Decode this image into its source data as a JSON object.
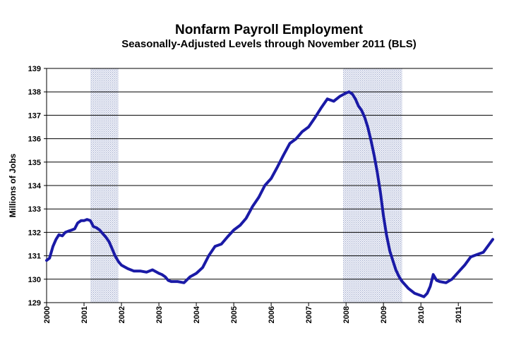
{
  "chart_data": {
    "type": "line",
    "title": "Nonfarm Payroll Employment",
    "subtitle": "Seasonally-Adjusted Levels through November 2011 (BLS)",
    "ylabel": "Millions of Jobs",
    "xlabel": "",
    "ylim": [
      129,
      139
    ],
    "yticks": [
      "129",
      "130",
      "131",
      "132",
      "133",
      "134",
      "135",
      "136",
      "137",
      "138",
      "139"
    ],
    "xlim": [
      2000.0,
      2011.92
    ],
    "xticks": [
      "2000",
      "2001",
      "2002",
      "2003",
      "2004",
      "2005",
      "2006",
      "2007",
      "2008",
      "2009",
      "2010",
      "2011"
    ],
    "grid": true,
    "line_color": "#1a1aa6",
    "recessions": [
      {
        "start": 2001.17,
        "end": 2001.92
      },
      {
        "start": 2007.92,
        "end": 2009.5
      }
    ],
    "series": [
      {
        "x": [
          2000.0,
          2000.08,
          2000.17,
          2000.25,
          2000.33,
          2000.42,
          2000.5,
          2000.58,
          2000.67,
          2000.75,
          2000.83,
          2000.92,
          2001.0,
          2001.08,
          2001.17,
          2001.25,
          2001.33,
          2001.42,
          2001.5,
          2001.58,
          2001.67,
          2001.75,
          2001.83,
          2001.92,
          2002.0,
          2002.17,
          2002.33,
          2002.5,
          2002.67,
          2002.83,
          2003.0,
          2003.08,
          2003.17,
          2003.25,
          2003.33,
          2003.5,
          2003.67,
          2003.83,
          2004.0,
          2004.17,
          2004.33,
          2004.5,
          2004.67,
          2004.83,
          2005.0,
          2005.17,
          2005.33,
          2005.5,
          2005.67,
          2005.83,
          2006.0,
          2006.17,
          2006.33,
          2006.5,
          2006.67,
          2006.83,
          2007.0,
          2007.17,
          2007.33,
          2007.5,
          2007.67,
          2007.83,
          2008.0,
          2008.08,
          2008.17,
          2008.25,
          2008.33,
          2008.42,
          2008.5,
          2008.58,
          2008.67,
          2008.75,
          2008.83,
          2008.92,
          2009.0,
          2009.08,
          2009.17,
          2009.25,
          2009.33,
          2009.42,
          2009.5,
          2009.67,
          2009.83,
          2010.0,
          2010.08,
          2010.17,
          2010.25,
          2010.33,
          2010.42,
          2010.5,
          2010.67,
          2010.83,
          2011.0,
          2011.17,
          2011.33,
          2011.5,
          2011.67,
          2011.83,
          2011.92
        ],
        "values": [
          130.8,
          130.9,
          131.4,
          131.7,
          131.9,
          131.85,
          132.0,
          132.05,
          132.1,
          132.15,
          132.4,
          132.5,
          132.5,
          132.55,
          132.5,
          132.25,
          132.2,
          132.1,
          131.95,
          131.8,
          131.6,
          131.3,
          131.0,
          130.75,
          130.6,
          130.45,
          130.35,
          130.35,
          130.3,
          130.4,
          130.25,
          130.2,
          130.1,
          129.95,
          129.9,
          129.9,
          129.85,
          130.1,
          130.25,
          130.5,
          131.0,
          131.4,
          131.5,
          131.8,
          132.1,
          132.3,
          132.6,
          133.1,
          133.5,
          134.0,
          134.3,
          134.8,
          135.3,
          135.8,
          136.0,
          136.3,
          136.5,
          136.9,
          137.3,
          137.7,
          137.6,
          137.8,
          137.95,
          138.0,
          137.9,
          137.7,
          137.4,
          137.2,
          136.9,
          136.5,
          135.9,
          135.3,
          134.6,
          133.7,
          132.7,
          131.9,
          131.2,
          130.8,
          130.4,
          130.1,
          129.9,
          129.6,
          129.4,
          129.3,
          129.25,
          129.4,
          129.7,
          130.2,
          129.95,
          129.9,
          129.85,
          130.0,
          130.3,
          130.6,
          130.95,
          131.05,
          131.15,
          131.5,
          131.7
        ]
      }
    ]
  }
}
